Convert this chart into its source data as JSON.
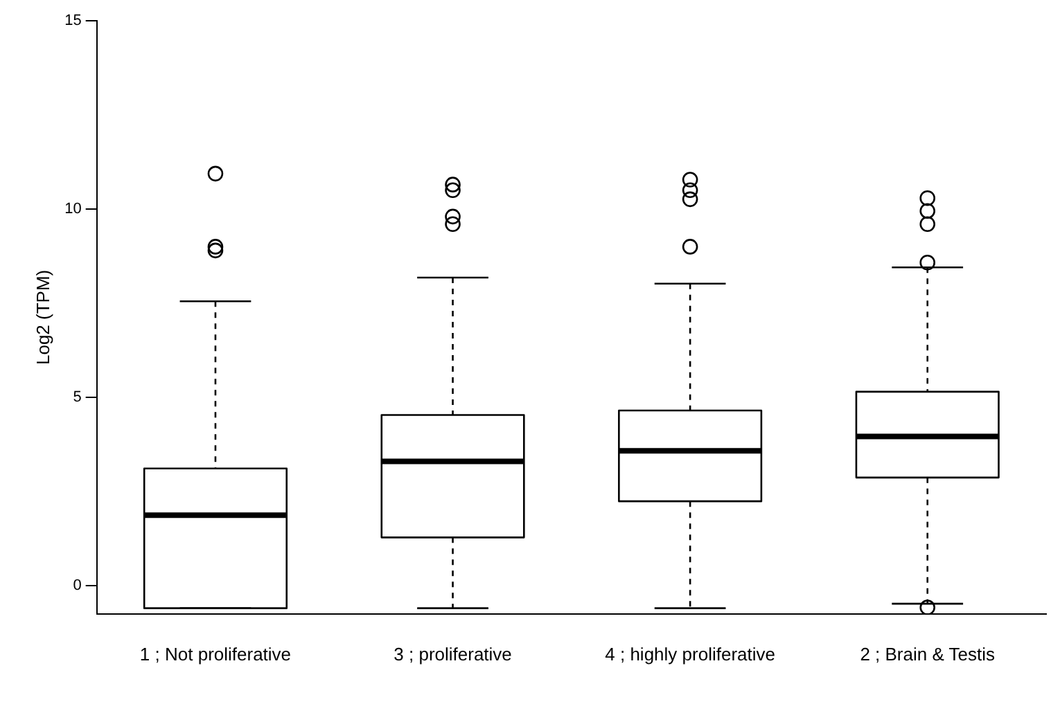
{
  "chart_data": {
    "type": "box",
    "ylabel": "Log2 (TPM)",
    "categories": [
      "1 ; Not proliferative",
      "3 ; proliferative",
      "4 ; highly proliferative",
      "2 ; Brain & Testis"
    ],
    "boxes": [
      {
        "low": -0.6,
        "q1": -0.6,
        "median": 1.87,
        "q3": 3.11,
        "high": 7.55,
        "outliers": [
          10.94,
          9.0,
          8.9
        ]
      },
      {
        "low": -0.6,
        "q1": 1.28,
        "median": 3.3,
        "q3": 4.53,
        "high": 8.18,
        "outliers": [
          10.65,
          10.5,
          9.8,
          9.6
        ]
      },
      {
        "low": -0.6,
        "q1": 2.24,
        "median": 3.58,
        "q3": 4.65,
        "high": 8.02,
        "outliers": [
          10.78,
          10.5,
          10.26,
          9.0
        ]
      },
      {
        "low": -0.48,
        "q1": 2.87,
        "median": 3.96,
        "q3": 5.15,
        "high": 8.45,
        "outliers": [
          10.29,
          9.95,
          9.6,
          8.58,
          -0.58
        ]
      }
    ],
    "color": "#000000",
    "ylim": [
      -0.75,
      15
    ],
    "yticks": [
      0,
      5,
      10,
      15
    ],
    "grid": false,
    "legend": false
  }
}
